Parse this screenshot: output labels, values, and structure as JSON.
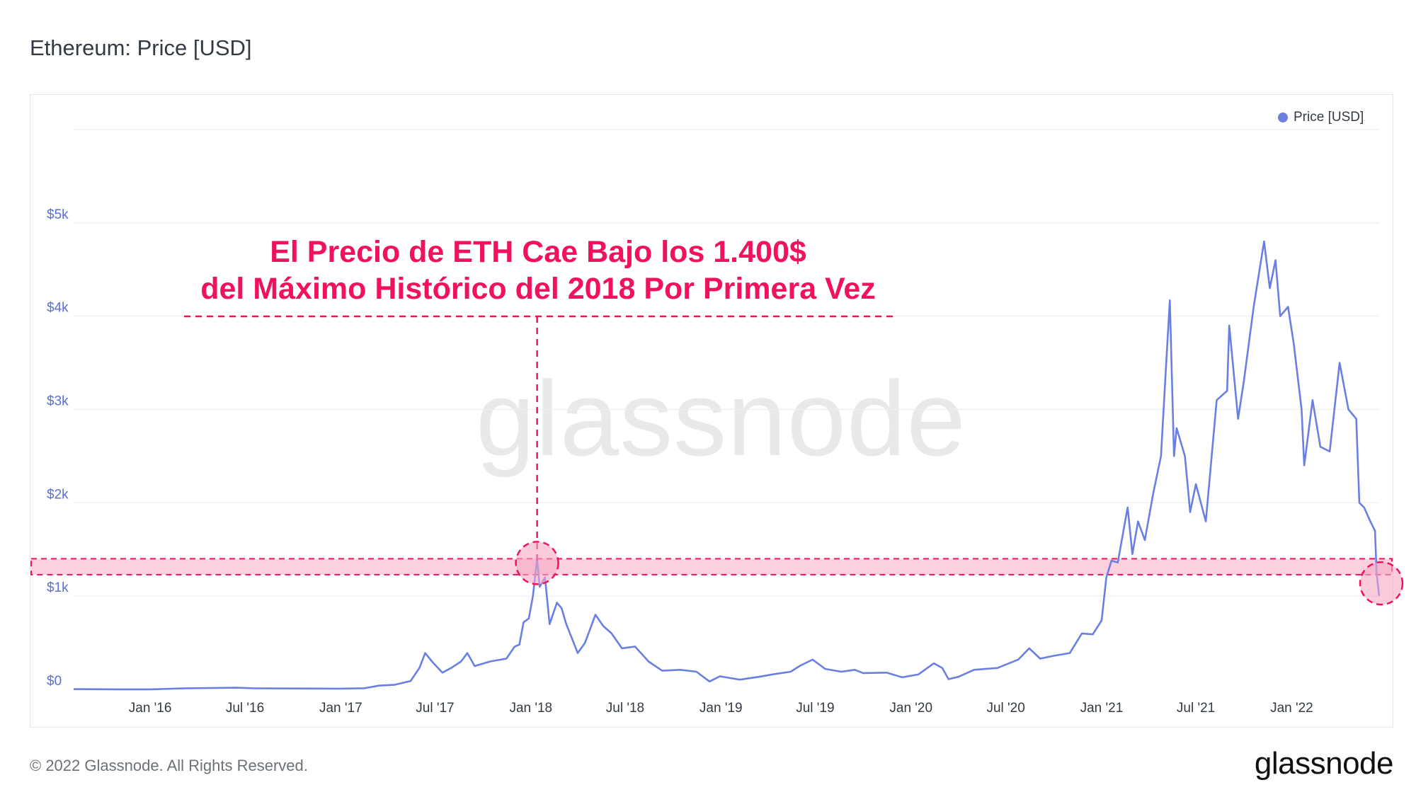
{
  "title": "Ethereum: Price [USD]",
  "footer": {
    "copyright": "© 2022 Glassnode. All Rights Reserved.",
    "brand": "glassnode"
  },
  "watermark": "glassnode",
  "legend": {
    "label": "Price [USD]",
    "color": "#6b7fe3"
  },
  "annotation": {
    "line1": "El Precio de ETH Cae Bajo los 1.400$",
    "line2": "del Máximo Histórico del 2018 Por Primera Vez",
    "color": "#f0125b"
  },
  "chart_data": {
    "type": "line",
    "title": "Ethereum: Price [USD]",
    "xlabel": "",
    "ylabel": "",
    "y_ticks": [
      "$0",
      "$1k",
      "$2k",
      "$3k",
      "$4k",
      "$5k"
    ],
    "y_tick_values": [
      0,
      1000,
      2000,
      3000,
      4000,
      5000
    ],
    "x_ticks": [
      "Jan '16",
      "Jul '16",
      "Jan '17",
      "Jul '17",
      "Jan '18",
      "Jul '18",
      "Jan '19",
      "Jul '19",
      "Jan '20",
      "Jul '20",
      "Jan '21",
      "Jul '21",
      "Jan '22"
    ],
    "x_tick_dates": [
      "2016-01-01",
      "2016-07-01",
      "2017-01-01",
      "2017-07-01",
      "2018-01-01",
      "2018-07-01",
      "2019-01-01",
      "2019-07-01",
      "2020-01-01",
      "2020-07-01",
      "2021-01-01",
      "2021-07-01",
      "2022-01-01"
    ],
    "xlim": [
      "2015-08-07",
      "2022-06-18"
    ],
    "ylim": [
      0,
      6000
    ],
    "grid": true,
    "legend_position": "top-right",
    "highlight_band": [
      1230,
      1400
    ],
    "series": [
      {
        "name": "Price [USD]",
        "color": "#6b7fe3",
        "points": [
          [
            "2015-08-07",
            3
          ],
          [
            "2015-11-01",
            1
          ],
          [
            "2016-01-01",
            1
          ],
          [
            "2016-03-10",
            12
          ],
          [
            "2016-06-15",
            18
          ],
          [
            "2016-07-20",
            11
          ],
          [
            "2016-12-30",
            8
          ],
          [
            "2017-02-15",
            12
          ],
          [
            "2017-03-15",
            40
          ],
          [
            "2017-04-15",
            50
          ],
          [
            "2017-05-15",
            90
          ],
          [
            "2017-06-01",
            230
          ],
          [
            "2017-06-12",
            390
          ],
          [
            "2017-06-25",
            300
          ],
          [
            "2017-07-15",
            180
          ],
          [
            "2017-08-01",
            230
          ],
          [
            "2017-08-20",
            300
          ],
          [
            "2017-09-01",
            390
          ],
          [
            "2017-09-15",
            250
          ],
          [
            "2017-10-15",
            300
          ],
          [
            "2017-11-15",
            330
          ],
          [
            "2017-12-01",
            460
          ],
          [
            "2017-12-10",
            480
          ],
          [
            "2017-12-18",
            720
          ],
          [
            "2017-12-28",
            760
          ],
          [
            "2018-01-05",
            1000
          ],
          [
            "2018-01-13",
            1400
          ],
          [
            "2018-01-18",
            1100
          ],
          [
            "2018-01-28",
            1200
          ],
          [
            "2018-02-06",
            700
          ],
          [
            "2018-02-20",
            930
          ],
          [
            "2018-03-01",
            870
          ],
          [
            "2018-03-10",
            700
          ],
          [
            "2018-04-01",
            390
          ],
          [
            "2018-04-15",
            500
          ],
          [
            "2018-05-05",
            800
          ],
          [
            "2018-05-20",
            680
          ],
          [
            "2018-06-05",
            600
          ],
          [
            "2018-06-25",
            440
          ],
          [
            "2018-07-20",
            460
          ],
          [
            "2018-08-15",
            300
          ],
          [
            "2018-09-10",
            200
          ],
          [
            "2018-10-15",
            210
          ],
          [
            "2018-11-15",
            190
          ],
          [
            "2018-12-10",
            85
          ],
          [
            "2018-12-30",
            140
          ],
          [
            "2019-02-06",
            105
          ],
          [
            "2019-03-15",
            135
          ],
          [
            "2019-04-15",
            165
          ],
          [
            "2019-05-15",
            190
          ],
          [
            "2019-06-01",
            250
          ],
          [
            "2019-06-26",
            320
          ],
          [
            "2019-07-20",
            220
          ],
          [
            "2019-08-20",
            190
          ],
          [
            "2019-09-15",
            210
          ],
          [
            "2019-10-01",
            175
          ],
          [
            "2019-11-15",
            180
          ],
          [
            "2019-12-15",
            130
          ],
          [
            "2020-01-15",
            160
          ],
          [
            "2020-02-14",
            280
          ],
          [
            "2020-03-01",
            230
          ],
          [
            "2020-03-13",
            110
          ],
          [
            "2020-04-01",
            135
          ],
          [
            "2020-05-01",
            210
          ],
          [
            "2020-06-15",
            230
          ],
          [
            "2020-07-25",
            320
          ],
          [
            "2020-08-15",
            440
          ],
          [
            "2020-09-05",
            330
          ],
          [
            "2020-10-01",
            360
          ],
          [
            "2020-11-01",
            390
          ],
          [
            "2020-11-24",
            600
          ],
          [
            "2020-12-15",
            590
          ],
          [
            "2021-01-01",
            740
          ],
          [
            "2021-01-10",
            1200
          ],
          [
            "2021-01-20",
            1380
          ],
          [
            "2021-02-01",
            1360
          ],
          [
            "2021-02-20",
            1950
          ],
          [
            "2021-03-01",
            1450
          ],
          [
            "2021-03-12",
            1800
          ],
          [
            "2021-03-25",
            1600
          ],
          [
            "2021-04-10",
            2100
          ],
          [
            "2021-04-25",
            2500
          ],
          [
            "2021-05-05",
            3500
          ],
          [
            "2021-05-12",
            4170
          ],
          [
            "2021-05-20",
            2500
          ],
          [
            "2021-05-25",
            2800
          ],
          [
            "2021-06-10",
            2500
          ],
          [
            "2021-06-20",
            1900
          ],
          [
            "2021-07-01",
            2200
          ],
          [
            "2021-07-20",
            1800
          ],
          [
            "2021-08-10",
            3100
          ],
          [
            "2021-08-30",
            3200
          ],
          [
            "2021-09-03",
            3900
          ],
          [
            "2021-09-20",
            2900
          ],
          [
            "2021-10-01",
            3300
          ],
          [
            "2021-10-20",
            4100
          ],
          [
            "2021-11-09",
            4800
          ],
          [
            "2021-11-20",
            4300
          ],
          [
            "2021-12-01",
            4600
          ],
          [
            "2021-12-10",
            4000
          ],
          [
            "2021-12-25",
            4100
          ],
          [
            "2022-01-05",
            3700
          ],
          [
            "2022-01-20",
            3000
          ],
          [
            "2022-01-25",
            2400
          ],
          [
            "2022-02-10",
            3100
          ],
          [
            "2022-02-25",
            2600
          ],
          [
            "2022-03-15",
            2550
          ],
          [
            "2022-04-03",
            3500
          ],
          [
            "2022-04-20",
            3000
          ],
          [
            "2022-05-05",
            2900
          ],
          [
            "2022-05-11",
            2000
          ],
          [
            "2022-05-20",
            1950
          ],
          [
            "2022-06-01",
            1800
          ],
          [
            "2022-06-10",
            1700
          ],
          [
            "2022-06-13",
            1250
          ],
          [
            "2022-06-18",
            1000
          ]
        ]
      }
    ]
  }
}
